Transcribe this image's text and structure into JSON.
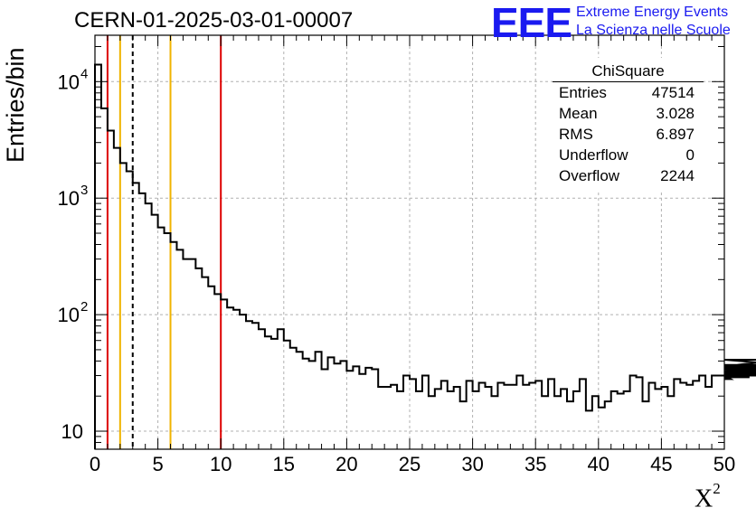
{
  "chart_data": {
    "type": "histogram",
    "title": "CERN-01-2025-03-01-00007",
    "xlabel": "X",
    "xlabel_superscript": "2",
    "ylabel": "Entries/bin",
    "xlim": [
      0,
      50
    ],
    "ylim": [
      7,
      25000
    ],
    "yscale": "log",
    "grid": true,
    "xticks": [
      0,
      5,
      10,
      15,
      20,
      25,
      30,
      35,
      40,
      45,
      50
    ],
    "xtick_labels": [
      "0",
      "5",
      "10",
      "15",
      "20",
      "25",
      "30",
      "35",
      "40",
      "45",
      "50"
    ],
    "ytick_labels": [
      {
        "base": "10",
        "exp": ""
      },
      {
        "base": "10",
        "exp": "2"
      },
      {
        "base": "10",
        "exp": "3"
      },
      {
        "base": "10",
        "exp": "4"
      }
    ],
    "bin_width": 0.5,
    "bin_contents": [
      14000,
      5900,
      3800,
      2700,
      2000,
      1700,
      1350,
      1100,
      900,
      720,
      560,
      500,
      420,
      360,
      300,
      300,
      250,
      210,
      175,
      150,
      135,
      115,
      110,
      100,
      88,
      85,
      75,
      65,
      62,
      75,
      60,
      52,
      48,
      42,
      40,
      48,
      34,
      43,
      38,
      40,
      33,
      36,
      31,
      35,
      34,
      24,
      24,
      25,
      22,
      30,
      28,
      22,
      30,
      20,
      23,
      27,
      22,
      24,
      18,
      27,
      22,
      26,
      24,
      20,
      26,
      25,
      25,
      30,
      25,
      26,
      27,
      20,
      28,
      20,
      23,
      18,
      22,
      28,
      15,
      20,
      16,
      18,
      22,
      21,
      22,
      30,
      29,
      18,
      26,
      23,
      24,
      20,
      28,
      26,
      25,
      27,
      30,
      24,
      30,
      30,
      30,
      28,
      30,
      29,
      29,
      35,
      31,
      30,
      36,
      41,
      37,
      32,
      35,
      33,
      31,
      30,
      33,
      32,
      34,
      31
    ],
    "reference_lines": [
      {
        "x": 1,
        "color": "#dd0000",
        "style": "solid"
      },
      {
        "x": 2,
        "color": "#f0b400",
        "style": "solid"
      },
      {
        "x": 3,
        "color": "#000000",
        "style": "dashed"
      },
      {
        "x": 6,
        "color": "#f0b400",
        "style": "solid"
      },
      {
        "x": 10,
        "color": "#dd0000",
        "style": "solid"
      }
    ]
  },
  "stats": {
    "title": "ChiSquare",
    "rows": [
      {
        "key": "Entries",
        "value": "47514"
      },
      {
        "key": "Mean",
        "value": "3.028"
      },
      {
        "key": "RMS",
        "value": "6.897"
      },
      {
        "key": "Underflow",
        "value": "0"
      },
      {
        "key": "Overflow",
        "value": "2244"
      }
    ]
  },
  "logo": {
    "mark": "EEE",
    "line1": "Extreme Energy Events",
    "line2": "La Scienza nelle Scuole",
    "color": "#1a1af0"
  }
}
